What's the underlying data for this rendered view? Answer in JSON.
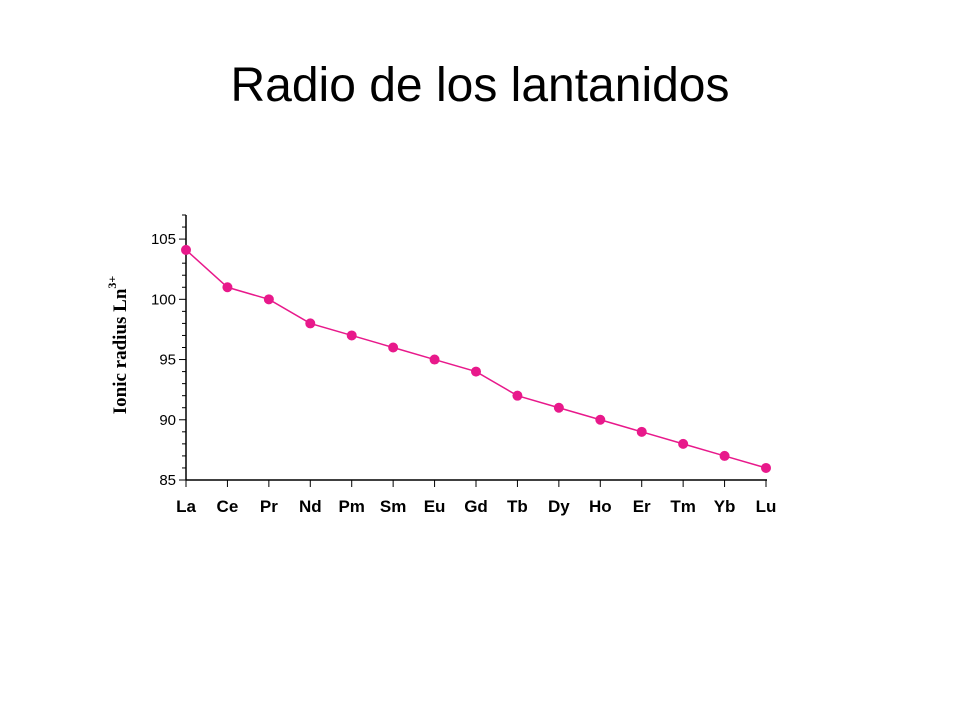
{
  "slide": {
    "title": "Radio de los lantanidos"
  },
  "chart_data": {
    "type": "line",
    "title": "",
    "xlabel": "",
    "ylabel": "Ionic radius Ln",
    "ylabel_superscript": "3+",
    "ylim": [
      85,
      107
    ],
    "yticks": [
      85,
      90,
      95,
      100,
      105
    ],
    "grid": false,
    "categories": [
      "La",
      "Ce",
      "Pr",
      "Nd",
      "Pm",
      "Sm",
      "Eu",
      "Gd",
      "Tb",
      "Dy",
      "Ho",
      "Er",
      "Tm",
      "Yb",
      "Lu"
    ],
    "series": [
      {
        "color": "#e8198b",
        "values": [
          104.1,
          101,
          100,
          98,
          97,
          96,
          95,
          94,
          92,
          91,
          90,
          89,
          88,
          87,
          86
        ]
      }
    ]
  }
}
